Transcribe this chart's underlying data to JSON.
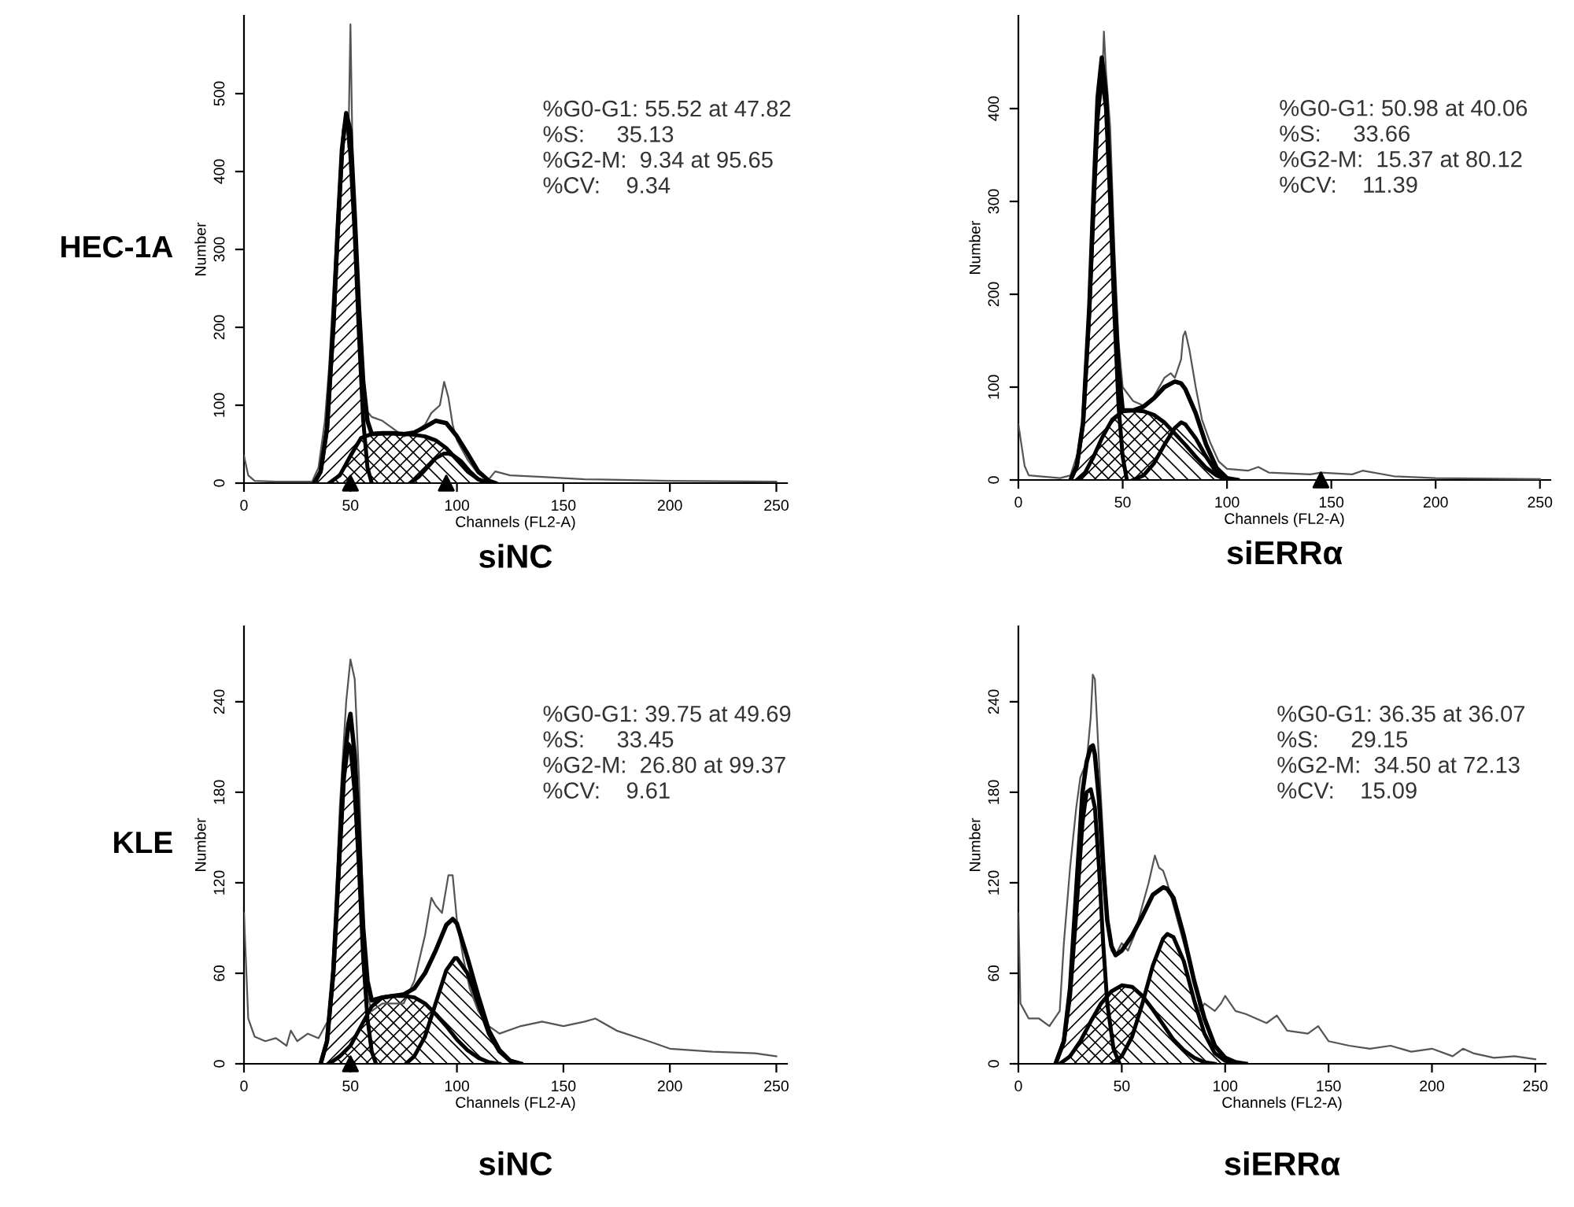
{
  "chart_data": [
    {
      "type": "line",
      "title": "siNC",
      "xlabel": "Channels (FL2-A)",
      "ylabel": "Number",
      "xlim": [
        0,
        255
      ],
      "xticks": [
        0,
        50,
        100,
        150,
        200,
        250
      ],
      "ylim": [
        0,
        600
      ],
      "yticks": [
        0,
        100,
        200,
        300,
        400,
        500
      ],
      "grid": false,
      "legend": false,
      "annotations": [
        "%G0-G1: 55.52 at 47.82\n%S:     35.13\n%G2-M:  9.34 at 95.65\n%CV:    9.34",
        "HEC-1A"
      ],
      "series": [
        {
          "type": "line",
          "color": "#555555",
          "x": [
            0,
            2,
            5,
            15,
            25,
            32,
            35,
            38,
            40,
            43,
            45,
            47,
            48,
            49,
            50,
            51,
            53,
            55,
            57,
            60,
            65,
            70,
            75,
            80,
            85,
            88,
            92,
            94,
            96,
            98,
            100,
            105,
            110,
            115,
            118,
            125,
            140,
            160,
            200,
            250
          ],
          "values": [
            35,
            10,
            3,
            2,
            2,
            2,
            20,
            80,
            150,
            300,
            400,
            450,
            470,
            430,
            589,
            420,
            300,
            150,
            95,
            85,
            80,
            70,
            60,
            65,
            75,
            90,
            100,
            130,
            110,
            75,
            55,
            30,
            12,
            5,
            15,
            10,
            8,
            5,
            3,
            2
          ]
        },
        {
          "type": "line",
          "color": "#000000",
          "x": [
            33,
            36,
            39,
            42,
            44,
            46,
            48,
            50,
            52,
            54,
            56,
            58,
            60,
            65,
            70,
            75,
            80,
            85,
            90,
            95,
            100,
            105,
            110,
            115,
            118
          ],
          "values": [
            0,
            15,
            70,
            205,
            325,
            428,
            475,
            452,
            345,
            225,
            130,
            80,
            63,
            64,
            64,
            63,
            65,
            72,
            80,
            77,
            60,
            38,
            15,
            3,
            0
          ]
        },
        {
          "type": "area",
          "color": "#000000",
          "x": [
            33,
            36,
            39,
            42,
            44,
            46,
            47,
            48,
            49,
            50,
            52,
            54,
            56,
            58,
            60
          ],
          "values": [
            0,
            15,
            70,
            200,
            320,
            420,
            455,
            467,
            455,
            420,
            320,
            190,
            80,
            20,
            0
          ]
        },
        {
          "type": "area",
          "color": "#000000",
          "x": [
            40,
            45,
            50,
            55,
            60,
            65,
            70,
            75,
            80,
            85,
            90,
            95,
            100,
            105,
            110,
            115
          ],
          "values": [
            0,
            10,
            35,
            58,
            63,
            64,
            64,
            63,
            62,
            60,
            55,
            45,
            30,
            15,
            5,
            0
          ]
        },
        {
          "type": "area",
          "color": "#000000",
          "x": [
            78,
            82,
            86,
            90,
            94,
            96,
            98,
            102,
            106,
            110,
            114
          ],
          "values": [
            0,
            8,
            20,
            32,
            38,
            38,
            36,
            28,
            15,
            5,
            0
          ]
        },
        {
          "type": "scatter",
          "marker": "triangle",
          "color": "#000000",
          "x": [
            50,
            95
          ],
          "values": [
            0,
            0
          ]
        }
      ]
    },
    {
      "type": "line",
      "title": "siERRα",
      "xlabel": "Channels (FL2-A)",
      "ylabel": "Number",
      "xlim": [
        0,
        255
      ],
      "xticks": [
        0,
        50,
        100,
        150,
        200,
        250
      ],
      "ylim": [
        0,
        500
      ],
      "yticks": [
        0,
        100,
        200,
        300,
        400
      ],
      "grid": false,
      "legend": false,
      "annotations": [
        "%G0-G1: 50.98 at 40.06\n%S:     33.66\n%G2-M:  15.37 at 80.12\n%CV:    11.39"
      ],
      "series": [
        {
          "type": "line",
          "color": "#555555",
          "x": [
            0,
            3,
            5,
            20,
            25,
            30,
            33,
            36,
            38,
            40,
            41,
            42,
            44,
            46,
            48,
            50,
            55,
            60,
            65,
            70,
            73,
            75,
            78,
            79,
            80,
            82,
            85,
            88,
            92,
            96,
            100,
            110,
            115,
            120,
            140,
            145,
            160,
            165,
            180,
            200,
            250
          ],
          "values": [
            60,
            15,
            5,
            2,
            5,
            40,
            150,
            300,
            390,
            420,
            483,
            440,
            380,
            250,
            150,
            100,
            85,
            80,
            90,
            110,
            115,
            110,
            130,
            155,
            160,
            140,
            100,
            65,
            40,
            20,
            12,
            10,
            14,
            8,
            6,
            8,
            6,
            10,
            4,
            2,
            1
          ]
        },
        {
          "type": "line",
          "color": "#000000",
          "x": [
            25,
            28,
            31,
            34,
            36,
            38,
            40,
            42,
            44,
            46,
            48,
            50,
            55,
            60,
            65,
            70,
            75,
            78,
            80,
            85,
            90,
            95,
            100,
            105
          ],
          "values": [
            0,
            15,
            62,
            186,
            305,
            412,
            455,
            415,
            320,
            205,
            120,
            75,
            75,
            79,
            88,
            100,
            106,
            104,
            98,
            72,
            38,
            13,
            2,
            0
          ]
        },
        {
          "type": "area",
          "color": "#000000",
          "x": [
            25,
            28,
            31,
            34,
            36,
            38,
            40,
            42,
            44,
            46,
            48,
            50,
            52
          ],
          "values": [
            0,
            15,
            60,
            180,
            290,
            390,
            436,
            400,
            300,
            180,
            80,
            25,
            0
          ]
        },
        {
          "type": "area",
          "color": "#000000",
          "x": [
            28,
            32,
            36,
            40,
            45,
            50,
            55,
            60,
            65,
            70,
            75,
            80,
            85,
            90,
            95,
            100
          ],
          "values": [
            0,
            8,
            25,
            45,
            65,
            74,
            75,
            74,
            70,
            62,
            50,
            38,
            25,
            13,
            5,
            0
          ]
        },
        {
          "type": "area",
          "color": "#000000",
          "x": [
            55,
            60,
            65,
            70,
            75,
            78,
            80,
            85,
            90,
            95,
            100
          ],
          "values": [
            0,
            5,
            18,
            38,
            56,
            62,
            60,
            45,
            25,
            8,
            0
          ]
        },
        {
          "type": "scatter",
          "marker": "triangle",
          "color": "#000000",
          "x": [
            145
          ],
          "values": [
            0
          ]
        }
      ]
    },
    {
      "type": "line",
      "title": "siNC",
      "xlabel": "Channels (FL2-A)",
      "ylabel": "Number",
      "xlim": [
        0,
        255
      ],
      "xticks": [
        0,
        50,
        100,
        150,
        200,
        250
      ],
      "ylim": [
        0,
        290
      ],
      "yticks": [
        0,
        60,
        120,
        180,
        240
      ],
      "grid": false,
      "legend": false,
      "annotations": [
        "%G0-G1: 39.75 at 49.69\n%S:     33.45\n%G2-M:  26.80 at 99.37\n%CV:    9.61",
        "KLE"
      ],
      "series": [
        {
          "type": "line",
          "color": "#555555",
          "x": [
            0,
            2,
            5,
            10,
            15,
            20,
            22,
            25,
            30,
            35,
            40,
            43,
            45,
            48,
            50,
            52,
            54,
            56,
            58,
            60,
            65,
            70,
            75,
            80,
            85,
            88,
            90,
            93,
            96,
            98,
            100,
            103,
            106,
            110,
            115,
            120,
            130,
            140,
            150,
            160,
            165,
            175,
            190,
            200,
            220,
            240,
            250
          ],
          "values": [
            100,
            30,
            18,
            15,
            17,
            12,
            22,
            15,
            20,
            17,
            30,
            100,
            170,
            240,
            268,
            255,
            190,
            100,
            45,
            35,
            40,
            40,
            40,
            55,
            85,
            110,
            105,
            100,
            125,
            125,
            95,
            70,
            50,
            35,
            25,
            20,
            25,
            28,
            25,
            28,
            30,
            22,
            15,
            10,
            8,
            7,
            5
          ]
        },
        {
          "type": "line",
          "color": "#000000",
          "x": [
            36,
            39,
            42,
            45,
            47,
            49,
            50,
            52,
            54,
            56,
            58,
            60,
            65,
            70,
            75,
            80,
            85,
            90,
            95,
            98,
            100,
            105,
            110,
            115,
            120,
            125,
            130
          ],
          "values": [
            0,
            15,
            62,
            145,
            198,
            225,
            232,
            205,
            150,
            90,
            55,
            42,
            44,
            45,
            46,
            50,
            60,
            75,
            92,
            96,
            93,
            70,
            45,
            22,
            9,
            2,
            0
          ]
        },
        {
          "type": "area",
          "color": "#000000",
          "x": [
            36,
            39,
            42,
            45,
            47,
            49,
            50,
            52,
            54,
            56,
            58,
            60,
            62
          ],
          "values": [
            0,
            15,
            60,
            140,
            190,
            212,
            210,
            180,
            130,
            70,
            30,
            8,
            0
          ]
        },
        {
          "type": "area",
          "color": "#000000",
          "x": [
            40,
            45,
            50,
            55,
            60,
            65,
            70,
            75,
            80,
            85,
            90,
            95,
            100,
            105,
            110,
            115,
            120
          ],
          "values": [
            0,
            5,
            12,
            25,
            38,
            44,
            45,
            45,
            44,
            40,
            33,
            25,
            16,
            9,
            4,
            1,
            0
          ]
        },
        {
          "type": "area",
          "color": "#000000",
          "x": [
            76,
            80,
            85,
            90,
            95,
            99,
            100,
            105,
            110,
            115,
            120,
            125,
            130
          ],
          "values": [
            0,
            5,
            18,
            40,
            62,
            70,
            70,
            60,
            40,
            20,
            8,
            2,
            0
          ]
        },
        {
          "type": "scatter",
          "marker": "triangle",
          "color": "#000000",
          "x": [
            50
          ],
          "values": [
            0
          ]
        }
      ]
    },
    {
      "type": "line",
      "title": "siERRα",
      "xlabel": "Channels (FL2-A)",
      "ylabel": "Number",
      "xlim": [
        0,
        255
      ],
      "xticks": [
        0,
        50,
        100,
        150,
        200,
        250
      ],
      "ylim": [
        0,
        290
      ],
      "yticks": [
        0,
        60,
        120,
        180,
        240
      ],
      "grid": false,
      "legend": false,
      "annotations": [
        "%G0-G1: 36.35 at 36.07\n%S:     29.15\n%G2-M:  34.50 at 72.13\n%CV:    15.09"
      ],
      "series": [
        {
          "type": "line",
          "color": "#555555",
          "x": [
            0,
            1,
            3,
            5,
            10,
            15,
            20,
            22,
            25,
            28,
            30,
            33,
            35,
            36,
            37,
            39,
            41,
            43,
            45,
            47,
            50,
            53,
            56,
            60,
            63,
            66,
            68,
            70,
            72,
            75,
            80,
            85,
            88,
            90,
            95,
            98,
            100,
            105,
            110,
            115,
            120,
            125,
            130,
            140,
            145,
            150,
            160,
            170,
            180,
            190,
            200,
            210,
            215,
            220,
            230,
            240,
            250
          ],
          "values": [
            100,
            40,
            35,
            30,
            30,
            25,
            35,
            80,
            130,
            170,
            190,
            200,
            230,
            258,
            255,
            200,
            150,
            100,
            75,
            72,
            80,
            75,
            85,
            105,
            120,
            138,
            130,
            128,
            120,
            105,
            80,
            55,
            35,
            40,
            35,
            40,
            45,
            35,
            33,
            30,
            27,
            32,
            22,
            20,
            25,
            15,
            12,
            10,
            12,
            8,
            10,
            5,
            10,
            7,
            4,
            5,
            3
          ]
        },
        {
          "type": "line",
          "color": "#000000",
          "x": [
            18,
            22,
            25,
            28,
            31,
            33,
            35,
            36,
            37,
            39,
            41,
            43,
            45,
            47,
            50,
            55,
            60,
            65,
            70,
            72,
            75,
            80,
            85,
            90,
            95,
            100,
            105,
            110
          ],
          "values": [
            0,
            15,
            50,
            115,
            180,
            200,
            210,
            211,
            205,
            175,
            130,
            95,
            78,
            72,
            75,
            85,
            98,
            112,
            117,
            116,
            110,
            85,
            55,
            30,
            12,
            4,
            1,
            0
          ]
        },
        {
          "type": "area",
          "color": "#000000",
          "x": [
            18,
            22,
            25,
            28,
            31,
            33,
            35,
            37,
            39,
            41,
            43,
            46,
            49
          ],
          "values": [
            0,
            15,
            45,
            100,
            160,
            180,
            182,
            170,
            130,
            80,
            40,
            10,
            0
          ]
        },
        {
          "type": "area",
          "color": "#000000",
          "x": [
            20,
            25,
            30,
            35,
            40,
            45,
            50,
            55,
            60,
            65,
            70,
            75,
            80,
            85,
            90,
            95
          ],
          "values": [
            0,
            5,
            15,
            28,
            40,
            48,
            52,
            51,
            45,
            36,
            26,
            16,
            9,
            4,
            1,
            0
          ]
        },
        {
          "type": "area",
          "color": "#000000",
          "x": [
            45,
            50,
            55,
            60,
            65,
            70,
            72,
            75,
            80,
            85,
            90,
            95,
            100,
            105
          ],
          "values": [
            0,
            5,
            18,
            40,
            65,
            83,
            86,
            84,
            68,
            42,
            20,
            7,
            2,
            0
          ]
        }
      ]
    }
  ]
}
